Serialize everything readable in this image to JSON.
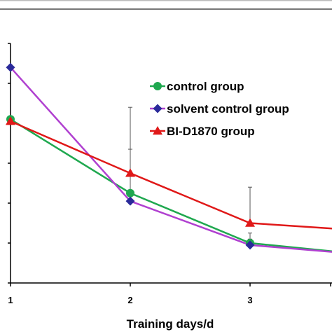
{
  "chart_data": {
    "type": "line",
    "title": "",
    "xlabel": "Training days/d",
    "ylabel": "",
    "x": [
      1,
      2,
      3,
      4
    ],
    "x_tick_labels": [
      "1",
      "2",
      "3"
    ],
    "xlim": [
      1,
      3.7
    ],
    "ylim": [
      0,
      6
    ],
    "grid": false,
    "legend_position": "top-right",
    "series": [
      {
        "name": "control group",
        "color": "#1fa84f",
        "marker": "circle",
        "values": [
          4.1,
          2.25,
          1.0,
          0.7
        ],
        "error_up": [
          0,
          0.0,
          0.1,
          0
        ]
      },
      {
        "name": "solvent control group",
        "color": "#b040d0",
        "marker": "diamond",
        "values": [
          5.4,
          2.05,
          0.95,
          0.7
        ],
        "error_up": [
          0,
          1.3,
          0.3,
          0
        ]
      },
      {
        "name": "BI-D1870 group",
        "color": "#e01818",
        "marker": "triangle",
        "values": [
          4.05,
          2.75,
          1.5,
          1.3
        ],
        "error_up": [
          0,
          1.65,
          0.9,
          0
        ]
      }
    ]
  }
}
